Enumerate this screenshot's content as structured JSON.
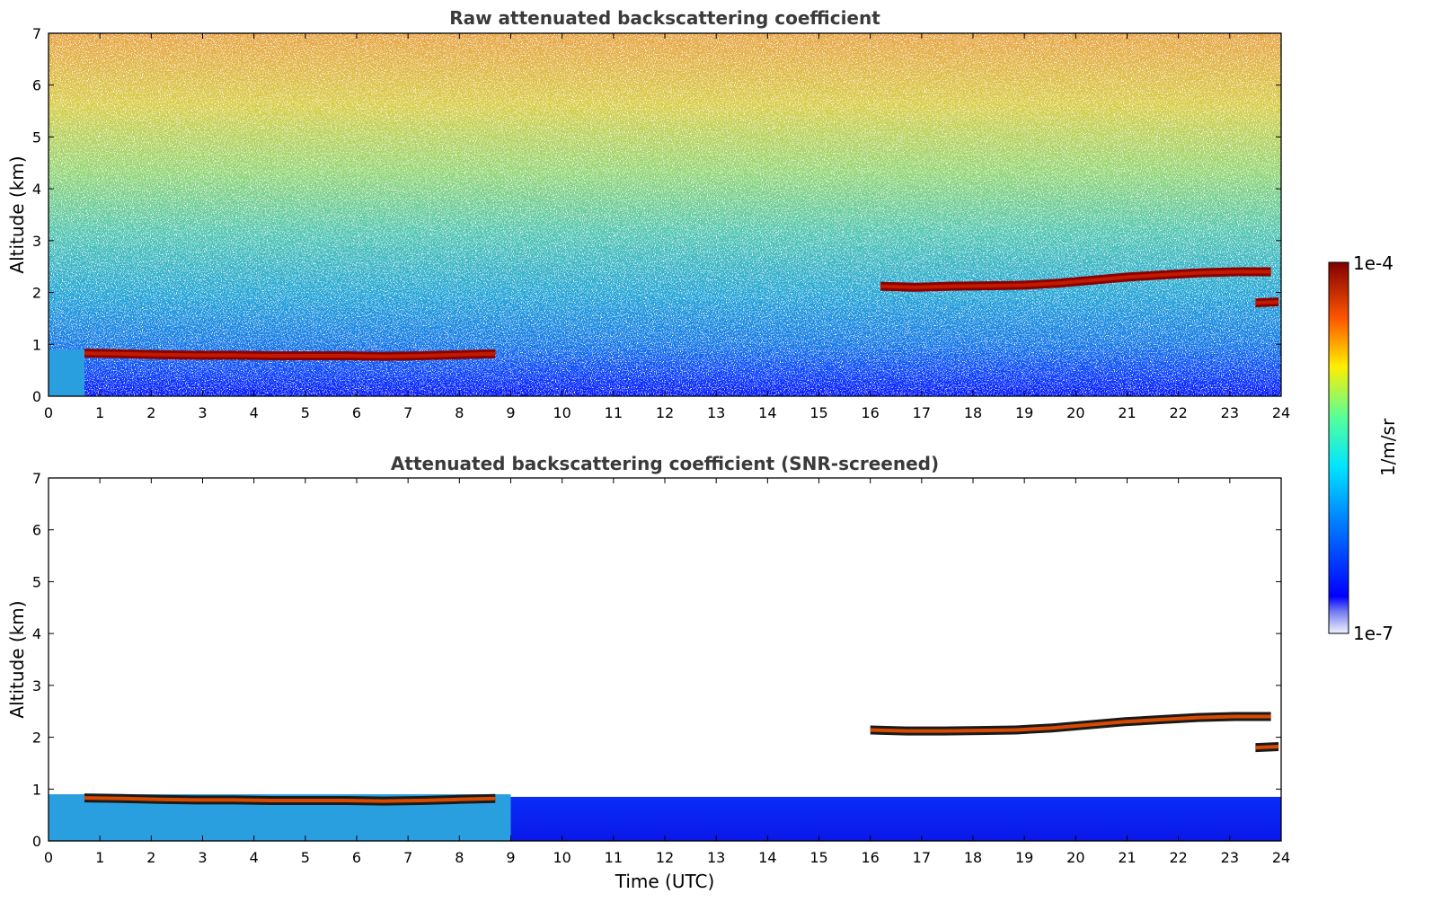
{
  "chart_data": [
    {
      "type": "heatmap",
      "title": "Raw attenuated backscattering coefficient",
      "xlabel": "",
      "ylabel": "Altitude (km)",
      "xlim": [
        0,
        24
      ],
      "ylim": [
        0,
        7
      ],
      "x_ticks": [
        "0",
        "1",
        "2",
        "3",
        "4",
        "5",
        "6",
        "7",
        "8",
        "9",
        "10",
        "11",
        "12",
        "13",
        "14",
        "15",
        "16",
        "17",
        "18",
        "19",
        "20",
        "21",
        "22",
        "23",
        "24"
      ],
      "y_ticks": [
        "0",
        "1",
        "2",
        "3",
        "4",
        "5",
        "6",
        "7"
      ],
      "colorscale": "jet",
      "log_scale": true,
      "screened": false,
      "noise": "noisy background increasing with altitude",
      "cloud_layers": [
        {
          "x_start": 0.7,
          "x_end": 8.7,
          "altitude": [
            0.83,
            0.82,
            0.8,
            0.79,
            0.79,
            0.78,
            0.78,
            0.78,
            0.77,
            0.78,
            0.8,
            0.82
          ]
        },
        {
          "x_start": 16.2,
          "x_end": 23.8,
          "altitude": [
            2.12,
            2.1,
            2.12,
            2.13,
            2.14,
            2.18,
            2.24,
            2.3,
            2.34,
            2.38,
            2.4,
            2.4
          ]
        },
        {
          "x_start": 23.5,
          "x_end": 23.95,
          "altitude": [
            1.8,
            1.82
          ]
        }
      ]
    },
    {
      "type": "heatmap",
      "title": "Attenuated backscattering coefficient (SNR-screened)",
      "xlabel": "Time (UTC)",
      "ylabel": "Altitude (km)",
      "xlim": [
        0,
        24
      ],
      "ylim": [
        0,
        7
      ],
      "x_ticks": [
        "0",
        "1",
        "2",
        "3",
        "4",
        "5",
        "6",
        "7",
        "8",
        "9",
        "10",
        "11",
        "12",
        "13",
        "14",
        "15",
        "16",
        "17",
        "18",
        "19",
        "20",
        "21",
        "22",
        "23",
        "24"
      ],
      "y_ticks": [
        "0",
        "1",
        "2",
        "3",
        "4",
        "5",
        "6",
        "7"
      ],
      "colorscale": "jet",
      "log_scale": true,
      "screened": true,
      "cloud_layers": [
        {
          "x_start": 0.7,
          "x_end": 8.7,
          "altitude": [
            0.83,
            0.82,
            0.8,
            0.79,
            0.79,
            0.78,
            0.78,
            0.78,
            0.77,
            0.78,
            0.8,
            0.82
          ]
        },
        {
          "x_start": 16.0,
          "x_end": 23.8,
          "altitude": [
            2.14,
            2.12,
            2.12,
            2.13,
            2.14,
            2.18,
            2.24,
            2.3,
            2.34,
            2.38,
            2.4,
            2.4
          ]
        },
        {
          "x_start": 23.5,
          "x_end": 23.95,
          "altitude": [
            1.8,
            1.82
          ]
        }
      ]
    }
  ],
  "colorbar": {
    "label": "1/m/sr",
    "max_label": "1e-4",
    "min_label": "1e-7",
    "colorscale": "jet"
  }
}
